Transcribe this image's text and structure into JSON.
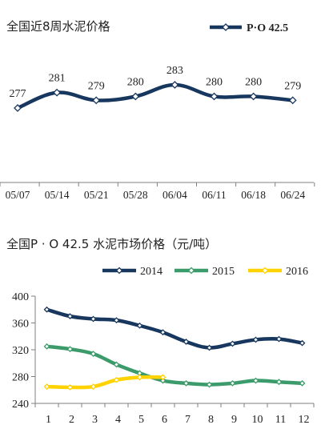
{
  "chart_data": [
    {
      "type": "line",
      "title": "全国近8周水泥价格",
      "categories": [
        "05/07",
        "05/14",
        "05/21",
        "05/28",
        "06/04",
        "06/11",
        "06/18",
        "06/24"
      ],
      "series": [
        {
          "name": "P·O 42.5",
          "values": [
            277,
            281,
            279,
            280,
            283,
            280,
            280,
            279
          ],
          "color": "#17375e"
        }
      ],
      "ylim": [
        270,
        290
      ],
      "grid": false,
      "legend": "top-right",
      "data_labels": true
    },
    {
      "type": "line",
      "title": "全国P · O 42.5 水泥市场价格（元/吨）",
      "categories": [
        "1",
        "2",
        "3",
        "4",
        "5",
        "6",
        "7",
        "8",
        "9",
        "10",
        "11",
        "12"
      ],
      "yticks": [
        240,
        280,
        320,
        360,
        400
      ],
      "ylim": [
        240,
        400
      ],
      "grid": false,
      "legend": "top",
      "series": [
        {
          "name": "2014",
          "color": "#17375e",
          "values": [
            380,
            370,
            366,
            364,
            356,
            346,
            332,
            323,
            329,
            335,
            336,
            330
          ]
        },
        {
          "name": "2015",
          "color": "#3b9b6a",
          "values": [
            325,
            321,
            314,
            298,
            285,
            274,
            270,
            268,
            270,
            274,
            272,
            270
          ]
        },
        {
          "name": "2016",
          "color": "#ffd200",
          "values": [
            265,
            264,
            265,
            275,
            279,
            279,
            null,
            null,
            null,
            null,
            null,
            null
          ]
        }
      ]
    }
  ]
}
